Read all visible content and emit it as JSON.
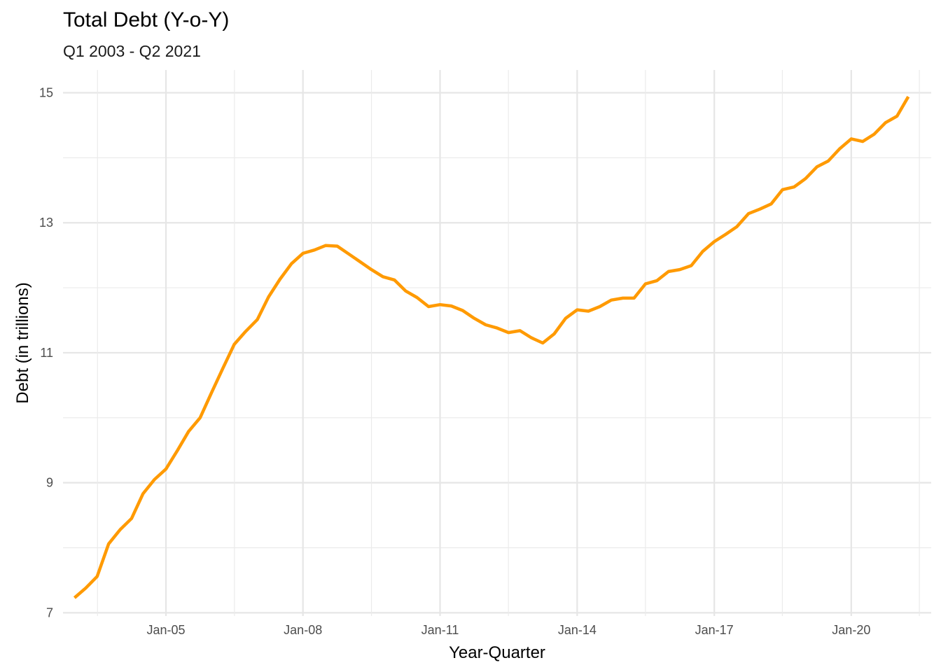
{
  "chart_data": {
    "type": "line",
    "title": "Total Debt (Y-o-Y)",
    "subtitle": "Q1 2003 - Q2 2021",
    "xlabel": "Year-Quarter",
    "ylabel": "Debt (in trillions)",
    "x_tick_labels": [
      "Jan-05",
      "Jan-08",
      "Jan-11",
      "Jan-14",
      "Jan-17",
      "Jan-20"
    ],
    "x_tick_dates": [
      "2005-01-01",
      "2008-01-01",
      "2011-01-01",
      "2014-01-01",
      "2017-01-01",
      "2020-01-01"
    ],
    "x_range": [
      "2002-10-01",
      "2021-10-01"
    ],
    "y_ticks": [
      7,
      9,
      11,
      13,
      15
    ],
    "ylim": [
      6.95,
      15.35
    ],
    "grid": true,
    "line_color": "#ff9a00",
    "series": [
      {
        "x": [
          "2003-01-01",
          "2003-04-01",
          "2003-07-01",
          "2003-10-01",
          "2004-01-01",
          "2004-04-01",
          "2004-07-01",
          "2004-10-01",
          "2005-01-01",
          "2005-04-01",
          "2005-07-01",
          "2005-10-01",
          "2006-01-01",
          "2006-04-01",
          "2006-07-01",
          "2006-10-01",
          "2007-01-01",
          "2007-04-01",
          "2007-07-01",
          "2007-10-01",
          "2008-01-01",
          "2008-04-01",
          "2008-07-01",
          "2008-10-01",
          "2009-01-01",
          "2009-04-01",
          "2009-07-01",
          "2009-10-01",
          "2010-01-01",
          "2010-04-01",
          "2010-07-01",
          "2010-10-01",
          "2011-01-01",
          "2011-04-01",
          "2011-07-01",
          "2011-10-01",
          "2012-01-01",
          "2012-04-01",
          "2012-07-01",
          "2012-10-01",
          "2013-01-01",
          "2013-04-01",
          "2013-07-01",
          "2013-10-01",
          "2014-01-01",
          "2014-04-01",
          "2014-07-01",
          "2014-10-01",
          "2015-01-01",
          "2015-04-01",
          "2015-07-01",
          "2015-10-01",
          "2016-01-01",
          "2016-04-01",
          "2016-07-01",
          "2016-10-01",
          "2017-01-01",
          "2017-04-01",
          "2017-07-01",
          "2017-10-01",
          "2018-01-01",
          "2018-04-01",
          "2018-07-01",
          "2018-10-01",
          "2019-01-01",
          "2019-04-01",
          "2019-07-01",
          "2019-10-01",
          "2020-01-01",
          "2020-04-01",
          "2020-07-01",
          "2020-10-01",
          "2021-01-01",
          "2021-04-01"
        ],
        "values": [
          7.23,
          7.38,
          7.56,
          8.06,
          8.28,
          8.45,
          8.83,
          9.05,
          9.21,
          9.49,
          9.79,
          10.0,
          10.39,
          10.76,
          11.13,
          11.33,
          11.51,
          11.86,
          12.13,
          12.37,
          12.53,
          12.58,
          12.65,
          12.64,
          12.52,
          12.4,
          12.28,
          12.17,
          12.12,
          11.95,
          11.85,
          11.71,
          11.74,
          11.72,
          11.65,
          11.53,
          11.43,
          11.38,
          11.31,
          11.34,
          11.23,
          11.15,
          11.29,
          11.53,
          11.66,
          11.64,
          11.71,
          11.81,
          11.84,
          11.84,
          12.06,
          12.11,
          12.25,
          12.28,
          12.34,
          12.56,
          12.71,
          12.82,
          12.94,
          13.14,
          13.21,
          13.29,
          13.51,
          13.55,
          13.68,
          13.86,
          13.95,
          14.14,
          14.29,
          14.25,
          14.36,
          14.54,
          14.64,
          14.94
        ]
      }
    ]
  }
}
